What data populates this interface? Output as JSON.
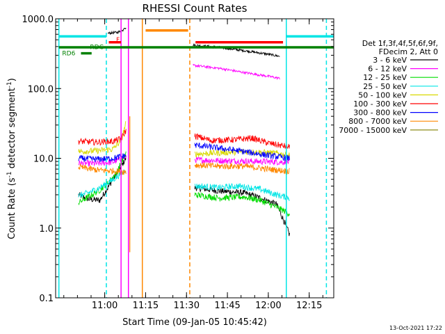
{
  "chart_data": {
    "type": "line",
    "title": "RHESSI Count Rates",
    "xlabel": "Start Time (09-Jan-05 10:45:42)",
    "ylabel_main": "Count Rate (s",
    "ylabel_sup1": "-1",
    "ylabel_mid": " detector segment",
    "ylabel_sup2": "-1",
    "ylabel_end": ")",
    "y_scale": "log",
    "ylim": [
      0.1,
      1000
    ],
    "xlim_minutes": [
      10.7,
      12.4
    ],
    "y_ticks": [
      {
        "value": 0.1,
        "label": "0.1"
      },
      {
        "value": 1,
        "label": "1.0"
      },
      {
        "value": 10,
        "label": "10.0"
      },
      {
        "value": 100,
        "label": "100.0"
      },
      {
        "value": 1000,
        "label": "1000.0"
      }
    ],
    "x_ticks": [
      {
        "hour": 11.0,
        "label": "11:00"
      },
      {
        "hour": 11.25,
        "label": "11:15"
      },
      {
        "hour": 11.5,
        "label": "11:30"
      },
      {
        "hour": 11.75,
        "label": "11:45"
      },
      {
        "hour": 12.0,
        "label": "12:00"
      },
      {
        "hour": 12.25,
        "label": "12:15"
      }
    ],
    "legend": {
      "header1": "Det 1f,3f,4f,5f,6f,9f,",
      "header2": "FDecim 2, Att 0",
      "placement": "right"
    },
    "series": [
      {
        "name": "3 - 6 keV",
        "color": "#000000",
        "p1": [
          [
            10.84,
            3.0
          ],
          [
            10.9,
            2.6
          ],
          [
            10.97,
            2.5
          ],
          [
            11.01,
            3.5
          ],
          [
            11.05,
            5.0
          ],
          [
            11.09,
            7.0
          ],
          [
            11.13,
            10.0
          ]
        ],
        "p2": [
          [
            11.55,
            3.8
          ],
          [
            11.7,
            3.4
          ],
          [
            11.85,
            3.2
          ],
          [
            11.95,
            2.7
          ],
          [
            12.05,
            2.2
          ],
          [
            12.1,
            1.2
          ],
          [
            12.13,
            0.8
          ]
        ],
        "top": [
          [
            11.02,
            620
          ],
          [
            11.08,
            640
          ],
          [
            11.11,
            680
          ],
          [
            11.12,
            760
          ],
          [
            11.13,
            720
          ]
        ],
        "top2": [
          [
            11.54,
            420
          ],
          [
            11.7,
            390
          ],
          [
            11.85,
            350
          ],
          [
            12.0,
            310
          ],
          [
            12.07,
            290
          ]
        ]
      },
      {
        "name": "6 - 12 keV",
        "color": "#ff00ff",
        "p1": [
          [
            10.84,
            8.5
          ],
          [
            10.95,
            8.4
          ],
          [
            11.05,
            8.8
          ],
          [
            11.13,
            10.5
          ]
        ],
        "p2": [
          [
            11.55,
            9.5
          ],
          [
            11.75,
            9.2
          ],
          [
            11.95,
            9.0
          ],
          [
            12.13,
            8.8
          ]
        ],
        "top2": [
          [
            11.54,
            215
          ],
          [
            11.7,
            195
          ],
          [
            11.85,
            170
          ],
          [
            12.0,
            150
          ],
          [
            12.07,
            140
          ]
        ]
      },
      {
        "name": "12 - 25 keV",
        "color": "#00dd00",
        "p1": [
          [
            10.84,
            2.3
          ],
          [
            10.9,
            2.8
          ],
          [
            10.97,
            3.5
          ],
          [
            11.02,
            4.5
          ],
          [
            11.07,
            6.0
          ],
          [
            11.13,
            12.0
          ]
        ],
        "p2": [
          [
            11.55,
            3.0
          ],
          [
            11.7,
            2.7
          ],
          [
            11.85,
            2.8
          ],
          [
            11.95,
            2.5
          ],
          [
            12.05,
            2.0
          ],
          [
            12.13,
            1.6
          ]
        ]
      },
      {
        "name": "25 - 50 keV",
        "color": "#00e5e5",
        "p1": [
          [
            10.84,
            2.9
          ],
          [
            10.9,
            3.2
          ],
          [
            10.97,
            3.8
          ],
          [
            11.03,
            4.6
          ],
          [
            11.08,
            5.5
          ],
          [
            11.13,
            7.0
          ]
        ],
        "p2": [
          [
            11.55,
            4.0
          ],
          [
            11.7,
            3.8
          ],
          [
            11.82,
            4.0
          ],
          [
            11.95,
            3.6
          ],
          [
            12.05,
            3.0
          ],
          [
            12.13,
            2.7
          ]
        ]
      },
      {
        "name": "50 - 100 keV",
        "color": "#d8d800",
        "p1": [
          [
            10.84,
            12.5
          ],
          [
            10.95,
            12.8
          ],
          [
            11.05,
            13.5
          ],
          [
            11.1,
            18.0
          ],
          [
            11.13,
            32.0
          ]
        ],
        "p2": [
          [
            11.55,
            11.5
          ],
          [
            11.7,
            12.0
          ],
          [
            11.85,
            12.5
          ],
          [
            11.95,
            12.2
          ],
          [
            12.05,
            11.8
          ],
          [
            12.13,
            11.0
          ]
        ]
      },
      {
        "name": "100 - 300 keV",
        "color": "#ff0000",
        "p1": [
          [
            10.84,
            17.5
          ],
          [
            10.95,
            17.0
          ],
          [
            11.05,
            17.5
          ],
          [
            11.1,
            19.0
          ],
          [
            11.13,
            25.0
          ]
        ],
        "p2": [
          [
            11.55,
            21.0
          ],
          [
            11.65,
            18.0
          ],
          [
            11.8,
            18.5
          ],
          [
            11.9,
            19.5
          ],
          [
            12.0,
            16.5
          ],
          [
            12.13,
            14.5
          ]
        ]
      },
      {
        "name": "300 - 800 keV",
        "color": "#0000ff",
        "p1": [
          [
            10.84,
            10.0
          ],
          [
            10.95,
            9.7
          ],
          [
            11.05,
            10.0
          ],
          [
            11.13,
            11.0
          ]
        ],
        "p2": [
          [
            11.55,
            15.5
          ],
          [
            11.7,
            14.0
          ],
          [
            11.85,
            12.5
          ],
          [
            12.0,
            11.0
          ],
          [
            12.13,
            10.0
          ]
        ]
      },
      {
        "name": "800 - 7000 keV",
        "color": "#ff8800",
        "p1": [
          [
            10.84,
            7.5
          ],
          [
            10.95,
            6.8
          ],
          [
            11.05,
            6.6
          ],
          [
            11.13,
            6.4
          ]
        ],
        "p2": [
          [
            11.55,
            8.0
          ],
          [
            11.7,
            7.7
          ],
          [
            11.85,
            7.7
          ],
          [
            12.0,
            7.0
          ],
          [
            12.13,
            6.5
          ]
        ]
      },
      {
        "name": "7000 - 15000 keV",
        "color": "#808000",
        "p1": [],
        "p2": []
      }
    ],
    "vertical_lines": [
      {
        "hour": 10.72,
        "color": "#00e5e5",
        "style": "solid"
      },
      {
        "hour": 11.01,
        "color": "#00e5e5",
        "style": "dashed"
      },
      {
        "hour": 11.1,
        "color": "#ff00ff",
        "style": "solid"
      },
      {
        "hour": 11.145,
        "color": "#ff00ff",
        "style": "solid"
      },
      {
        "hour": 11.23,
        "color": "#ff8800",
        "style": "solid"
      },
      {
        "hour": 11.52,
        "color": "#ff8800",
        "style": "dashed"
      },
      {
        "hour": 12.11,
        "color": "#00e5e5",
        "style": "solid"
      },
      {
        "hour": 12.355,
        "color": "#00e5e5",
        "style": "dashed"
      }
    ],
    "horizontal_bars": [
      {
        "from": 10.72,
        "to": 11.01,
        "y": 560,
        "color": "#00e5e5"
      },
      {
        "from": 12.11,
        "to": 12.4,
        "y": 560,
        "color": "#00e5e5"
      },
      {
        "from": 11.025,
        "to": 11.1,
        "y": 460,
        "color": "#ff0000"
      },
      {
        "from": 11.555,
        "to": 12.09,
        "y": 460,
        "color": "#ff0000"
      },
      {
        "from": 11.25,
        "to": 11.51,
        "y": 680,
        "color": "#ff8800"
      },
      {
        "from": 10.72,
        "to": 12.4,
        "y": 390,
        "color": "#008000"
      },
      {
        "from": 10.855,
        "to": 10.92,
        "y": 320,
        "color": "#008000"
      }
    ],
    "flag_labels": [
      {
        "text": "F",
        "hour": 11.07,
        "y": 470,
        "color": "#ff0000"
      },
      {
        "text": "RDC",
        "hour": 10.91,
        "y": 370,
        "color": "#008000"
      },
      {
        "text": "RD6",
        "hour": 10.74,
        "y": 300,
        "color": "#008000"
      }
    ]
  },
  "footer": {
    "timestamp": "13-Oct-2021 17:22"
  }
}
